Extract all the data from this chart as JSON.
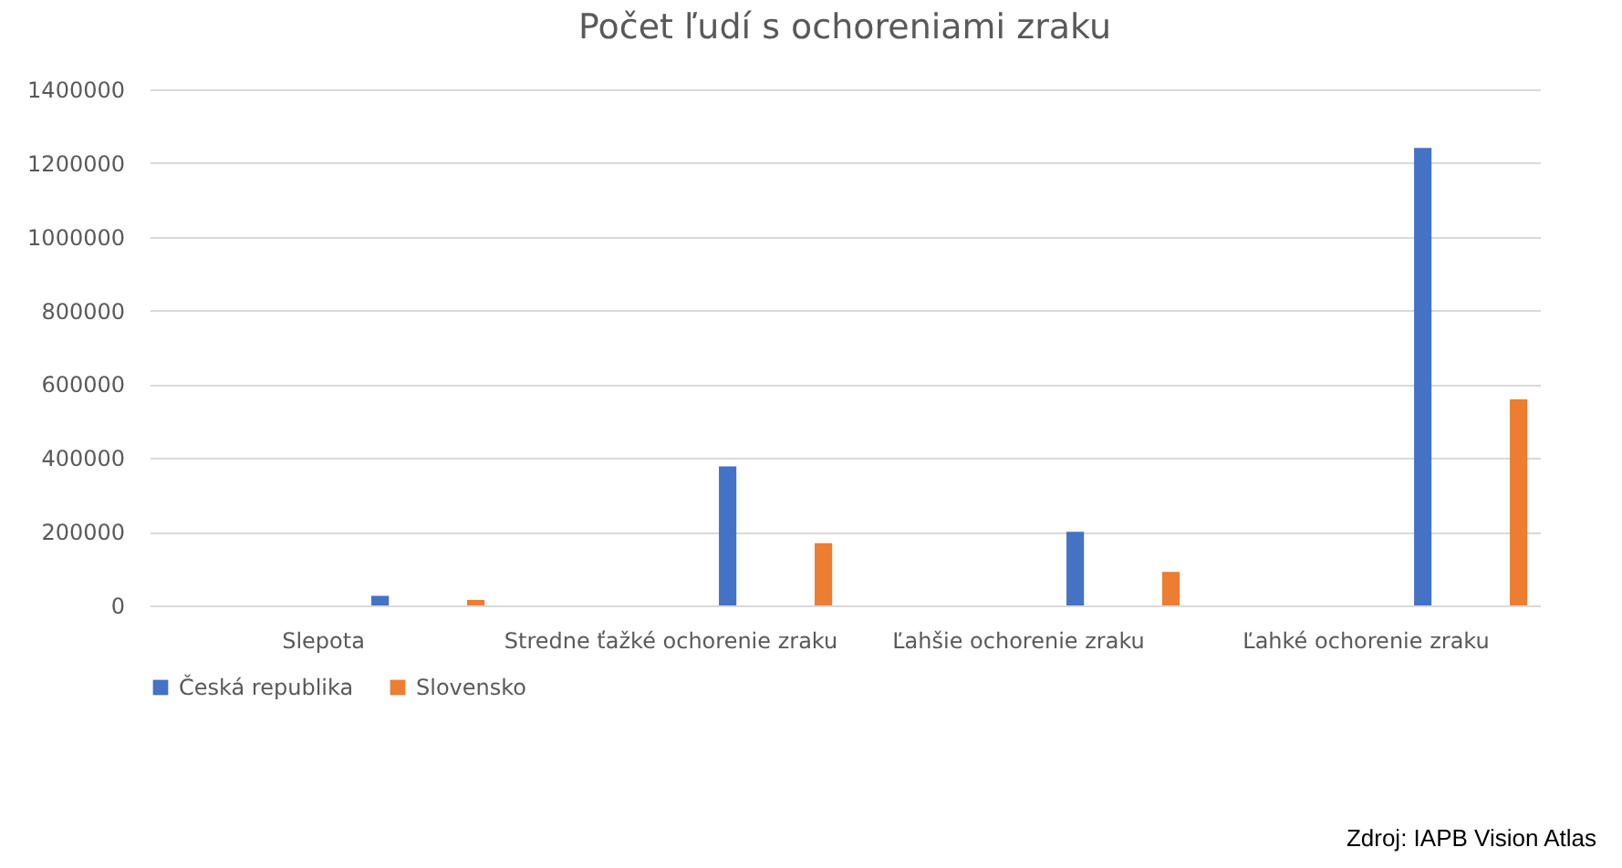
{
  "chart_data": {
    "type": "bar",
    "title": "Počet ľudí s ochoreniami zraku",
    "categories": [
      "Slepota",
      "Stredne ťažké ochorenie zraku",
      "Ľahšie ochorenie zraku",
      "Ľahké ochorenie zraku"
    ],
    "series": [
      {
        "name": "Česká republika",
        "color": "#4472c4",
        "values": [
          26000,
          377000,
          200000,
          1241000
        ]
      },
      {
        "name": "Slovensko",
        "color": "#ed7d31",
        "values": [
          15000,
          169000,
          91000,
          559000
        ]
      }
    ],
    "ylim": [
      0,
      1400000
    ],
    "yticks": [
      0,
      200000,
      400000,
      600000,
      800000,
      1000000,
      1200000,
      1400000
    ],
    "grid": "y",
    "legend": "bottom",
    "annotations": [
      "Zdroj: IAPB Vision Atlas"
    ]
  }
}
